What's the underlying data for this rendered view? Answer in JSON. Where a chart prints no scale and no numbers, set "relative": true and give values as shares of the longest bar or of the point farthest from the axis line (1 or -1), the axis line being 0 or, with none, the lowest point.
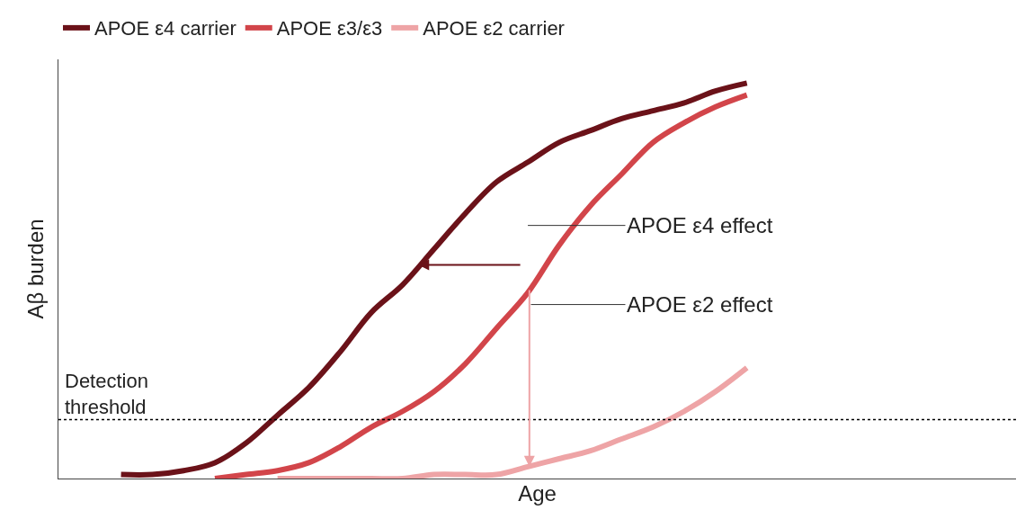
{
  "chart_data": {
    "type": "line",
    "relative": true,
    "xlabel": "Age",
    "ylabel": "Aβ burden",
    "legend": "top left",
    "marker": "none",
    "line_style": "solid",
    "categories": [
      null,
      null,
      null,
      null,
      null,
      null,
      null,
      null,
      null,
      null,
      null,
      null,
      null,
      null,
      null,
      null,
      null,
      null,
      null,
      null,
      null,
      null,
      null,
      null,
      null,
      null,
      null,
      null,
      null,
      null
    ],
    "series": [
      {
        "name": "APOE ε4 carrier",
        "color": "#6b1219",
        "values": [
          null,
          0.01,
          0.01,
          0.02,
          0.04,
          0.09,
          0.16,
          0.23,
          0.32,
          0.42,
          0.49,
          0.58,
          0.67,
          0.75,
          0.8,
          0.85,
          0.88,
          0.91,
          0.93,
          0.95,
          0.98,
          1,
          null,
          null,
          null,
          null,
          null,
          null,
          null,
          null
        ]
      },
      {
        "name": "APOE ε3/ε3",
        "color": "#d2454a",
        "values": [
          null,
          null,
          null,
          null,
          0.0,
          0.01,
          0.02,
          0.04,
          0.08,
          0.13,
          0.17,
          0.22,
          0.29,
          0.38,
          0.47,
          0.59,
          0.69,
          0.77,
          0.85,
          0.9,
          0.94,
          0.97,
          null,
          null,
          null,
          null,
          null,
          null,
          null,
          null
        ]
      },
      {
        "name": "APOE ε2 carrier",
        "color": "#eea4a6",
        "values": [
          null,
          null,
          null,
          null,
          null,
          null,
          0.0,
          0.0,
          0.0,
          0.0,
          0.0,
          0.01,
          0.01,
          0.01,
          0.03,
          0.05,
          0.07,
          0.1,
          0.13,
          0.17,
          0.22,
          0.28,
          null,
          null,
          null,
          null,
          null,
          null,
          null,
          null
        ]
      }
    ],
    "ref_lines": [
      {
        "axis": "y",
        "value": 0.149,
        "label": "Detection threshold",
        "color": "#000000",
        "line_style": "dotted"
      }
    ],
    "annotations": [
      "APOE ε4 effect",
      "APOE ε2 effect"
    ]
  }
}
